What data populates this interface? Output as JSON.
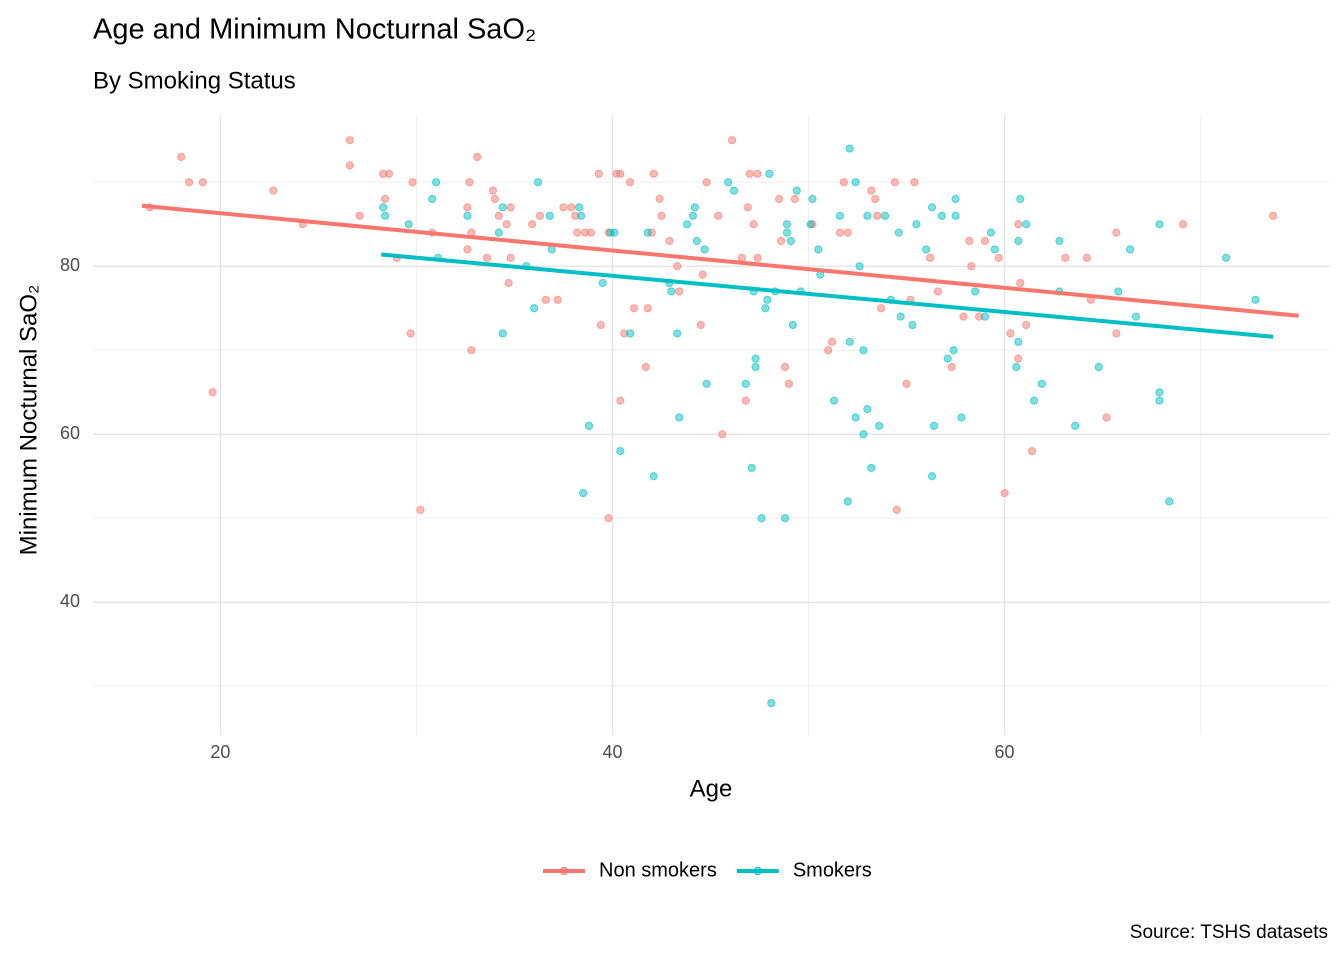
{
  "chart_data": {
    "type": "scatter",
    "title": "Age and Minimum Nocturnal SaO₂",
    "subtitle": "By Smoking Status",
    "x_label": "Age",
    "y_label": "Minimum Nocturnal SaO₂",
    "caption": "Source: TSHS datasets",
    "xlim": [
      13.5,
      76.6
    ],
    "ylim": [
      24.2,
      98
    ],
    "xticks": [
      20,
      40,
      60
    ],
    "yticks": [
      40,
      60,
      80
    ],
    "x_minor_grid": [
      30,
      50,
      70
    ],
    "y_minor_grid": [
      30,
      50,
      70,
      90
    ],
    "grid": true,
    "legend": "bottom",
    "series": [
      {
        "name": "Non smokers",
        "color": "#F8766D",
        "x": [
          16.4,
          18,
          18.4,
          19.1,
          19.6,
          22.7,
          24.2,
          26.6,
          26.6,
          27.1,
          28.3,
          28.6,
          28.4,
          29,
          29.7,
          29.8,
          30.2,
          30.8,
          32.6,
          32.7,
          32.6,
          32.8,
          32.8,
          33.1,
          33.6,
          33.9,
          34,
          34.2,
          34.6,
          34.7,
          34.8,
          34.8,
          35.9,
          36.3,
          36.6,
          37.2,
          37.5,
          37.9,
          38.1,
          38.2,
          38.6,
          38.9,
          39.3,
          39.4,
          39.8,
          39.8,
          40.2,
          40.4,
          40.4,
          40.6,
          40.9,
          41.1,
          41.7,
          41.8,
          42,
          42.1,
          42.4,
          42.5,
          42.9,
          43.3,
          43.4,
          44.5,
          44.6,
          44.8,
          45.4,
          45.6,
          46.1,
          46.6,
          46.8,
          46.9,
          47,
          47.4,
          47.2,
          47.4,
          48.5,
          48.6,
          48.8,
          49,
          49.3,
          50.2,
          51,
          51.2,
          51.6,
          51.8,
          52,
          53.2,
          53.4,
          53.5,
          53.7,
          54.4,
          54.5,
          55,
          55.2,
          55.4,
          56.2,
          56.6,
          57.3,
          57.9,
          58.2,
          58.3,
          58.7,
          59,
          59.7,
          60,
          60.3,
          60.7,
          60.7,
          60.8,
          61.1,
          61.4,
          63.1,
          64.2,
          64.4,
          65.2,
          65.7,
          65.7,
          69.1,
          73.7
        ],
        "values": [
          87,
          93,
          90,
          90,
          65,
          89,
          85,
          95,
          92,
          86,
          91,
          91,
          88,
          81,
          72,
          90,
          51,
          84,
          82,
          90,
          87,
          84,
          70,
          93,
          81,
          89,
          88,
          86,
          85,
          78,
          87,
          81,
          85,
          86,
          76,
          76,
          87,
          87,
          86,
          84,
          84,
          84,
          91,
          73,
          84,
          50,
          91,
          91,
          64,
          72,
          90,
          75,
          68,
          75,
          84,
          91,
          88,
          86,
          83,
          80,
          77,
          73,
          79,
          90,
          86,
          60,
          95,
          81,
          64,
          87,
          91,
          91,
          85,
          81,
          88,
          83,
          68,
          66,
          88,
          85,
          70,
          71,
          84,
          90,
          84,
          89,
          88,
          86,
          75,
          90,
          51,
          66,
          76,
          90,
          81,
          77,
          68,
          74,
          83,
          80,
          74,
          83,
          81,
          53,
          72,
          85,
          69,
          78,
          73,
          58,
          81,
          81,
          76,
          62,
          84,
          72,
          85,
          86
        ],
        "trend": {
          "x": [
            16,
            75
          ],
          "values": [
            87.2,
            74.1
          ]
        }
      },
      {
        "name": "Smokers",
        "color": "#00BFC4",
        "x": [
          28.3,
          28.4,
          29.6,
          31,
          31.1,
          30.8,
          32.6,
          34.2,
          34.4,
          34.4,
          35.6,
          36,
          36.2,
          36.8,
          36.9,
          38.3,
          38.4,
          38.5,
          38.8,
          39.5,
          39.9,
          40.1,
          40.4,
          40.9,
          41.8,
          42.1,
          42.9,
          43,
          43.3,
          43.4,
          43.8,
          44.1,
          44.2,
          44.3,
          44.7,
          44.8,
          45.9,
          46.2,
          46.8,
          47.1,
          47.2,
          47.3,
          47.3,
          47.6,
          47.8,
          47.9,
          48,
          48.1,
          48.3,
          48.8,
          48.9,
          48.9,
          49.1,
          49.2,
          49.4,
          49.6,
          50.1,
          50.2,
          50.5,
          50.6,
          51.3,
          51.6,
          52,
          52.1,
          52.1,
          52.4,
          52.4,
          52.6,
          52.8,
          52.8,
          53,
          53,
          53.2,
          53.6,
          53.9,
          54.2,
          54.6,
          54.7,
          55.3,
          55.5,
          56,
          56.3,
          56.3,
          56.4,
          56.8,
          57.1,
          57.4,
          57.5,
          57.5,
          57.8,
          58.5,
          59,
          59.3,
          59.5,
          60.7,
          60.6,
          60.7,
          60.8,
          61.1,
          61.5,
          61.9,
          62.8,
          62.8,
          63.6,
          64.8,
          65.8,
          66.4,
          66.7,
          67.9,
          67.9,
          67.9,
          68.4,
          71.3,
          72.8
        ],
        "values": [
          87,
          86,
          85,
          90,
          81,
          88,
          86,
          84,
          87,
          72,
          80,
          75,
          90,
          86,
          82,
          87,
          86,
          53,
          61,
          78,
          84,
          84,
          58,
          72,
          84,
          55,
          78,
          77,
          72,
          62,
          85,
          86,
          87,
          83,
          82,
          66,
          90,
          89,
          66,
          56,
          77,
          69,
          68,
          50,
          75,
          76,
          91,
          28,
          77,
          50,
          85,
          84,
          83,
          73,
          89,
          77,
          85,
          88,
          82,
          79,
          64,
          86,
          52,
          94,
          71,
          90,
          62,
          80,
          60,
          70,
          86,
          63,
          56,
          61,
          86,
          76,
          84,
          74,
          73,
          85,
          82,
          87,
          55,
          61,
          86,
          69,
          70,
          88,
          86,
          62,
          77,
          74,
          84,
          82,
          71,
          68,
          83,
          88,
          85,
          64,
          66,
          83,
          77,
          61,
          68,
          77,
          82,
          74,
          65,
          85,
          64,
          52,
          81,
          76
        ],
        "trend": {
          "x": [
            28.2,
            73.7
          ],
          "values": [
            81.4,
            71.6
          ]
        }
      }
    ]
  }
}
